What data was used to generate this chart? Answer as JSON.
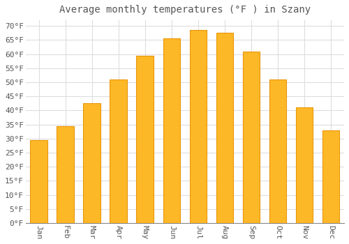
{
  "title": "Average monthly temperatures (°F ) in Szany",
  "months": [
    "Jan",
    "Feb",
    "Mar",
    "Apr",
    "May",
    "Jun",
    "Jul",
    "Aug",
    "Sep",
    "Oct",
    "Nov",
    "Dec"
  ],
  "values": [
    29.5,
    34.5,
    42.5,
    51.0,
    59.5,
    65.5,
    68.5,
    67.5,
    61.0,
    51.0,
    41.0,
    33.0
  ],
  "bar_color": "#FDB827",
  "bar_edge_color": "#E8960A",
  "background_color": "#FFFFFF",
  "grid_color": "#DDDDDD",
  "text_color": "#555555",
  "ylim": [
    0,
    72
  ],
  "yticks": [
    0,
    5,
    10,
    15,
    20,
    25,
    30,
    35,
    40,
    45,
    50,
    55,
    60,
    65,
    70
  ],
  "title_fontsize": 10,
  "tick_fontsize": 8,
  "bar_width": 0.65
}
